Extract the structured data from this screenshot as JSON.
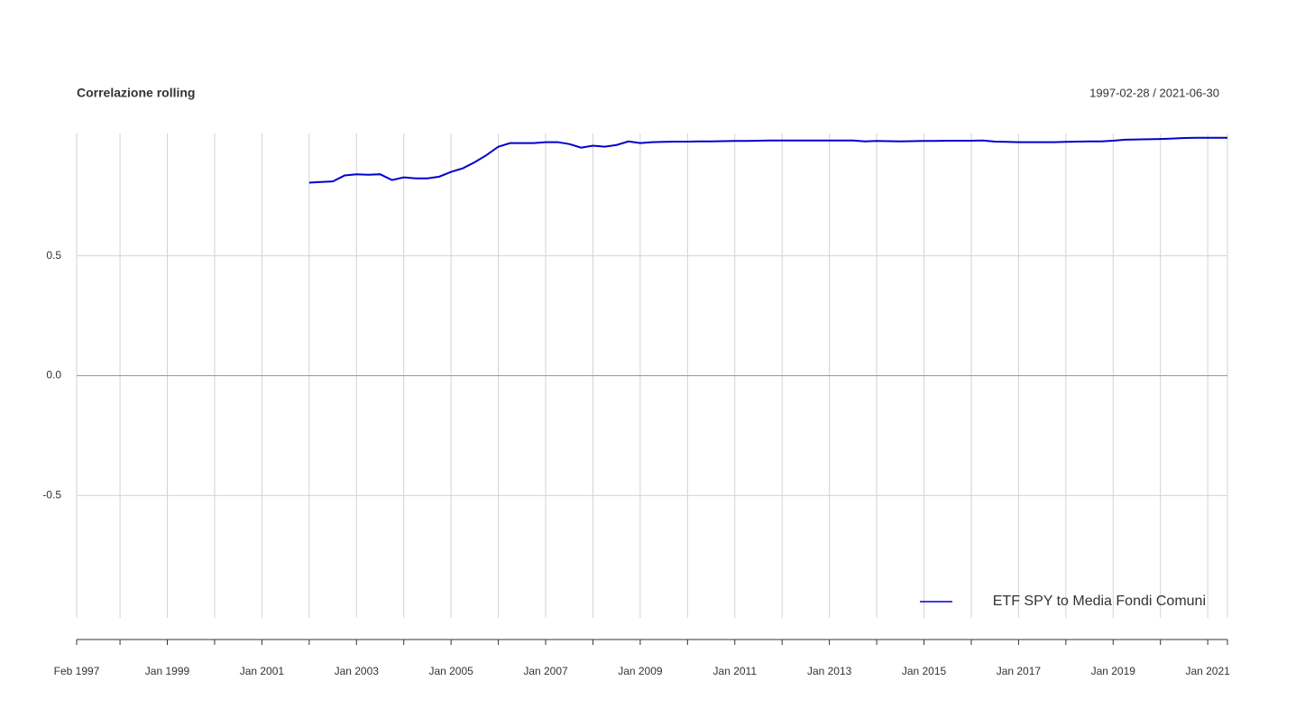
{
  "chart_data": {
    "type": "line",
    "title": "Correlazione rolling",
    "subtitle": "1997-02-28 / 2021-06-30",
    "x": [
      "2002-01",
      "2002-04",
      "2002-07",
      "2002-10",
      "2003-01",
      "2003-04",
      "2003-07",
      "2003-10",
      "2004-01",
      "2004-04",
      "2004-07",
      "2004-10",
      "2005-01",
      "2005-04",
      "2005-07",
      "2005-10",
      "2006-01",
      "2006-04",
      "2006-07",
      "2006-10",
      "2007-01",
      "2007-04",
      "2007-07",
      "2007-10",
      "2008-01",
      "2008-04",
      "2008-07",
      "2008-10",
      "2009-01",
      "2009-04",
      "2009-07",
      "2009-10",
      "2010-01",
      "2010-04",
      "2010-07",
      "2010-10",
      "2011-01",
      "2011-04",
      "2011-07",
      "2011-10",
      "2012-01",
      "2012-04",
      "2012-07",
      "2012-10",
      "2013-01",
      "2013-04",
      "2013-07",
      "2013-10",
      "2014-01",
      "2014-04",
      "2014-07",
      "2014-10",
      "2015-01",
      "2015-04",
      "2015-07",
      "2015-10",
      "2016-01",
      "2016-04",
      "2016-07",
      "2016-10",
      "2017-01",
      "2017-04",
      "2017-07",
      "2017-10",
      "2018-01",
      "2018-04",
      "2018-07",
      "2018-10",
      "2019-01",
      "2019-04",
      "2019-07",
      "2019-10",
      "2020-01",
      "2020-04",
      "2020-07",
      "2020-10",
      "2021-01",
      "2021-04",
      "2021-06"
    ],
    "series": [
      {
        "name": "ETF SPY to Media Fondi Comuni",
        "color": "#0000cd",
        "values": [
          0.805,
          0.808,
          0.81,
          0.835,
          0.84,
          0.838,
          0.84,
          0.816,
          0.827,
          0.823,
          0.823,
          0.83,
          0.85,
          0.865,
          0.89,
          0.92,
          0.955,
          0.97,
          0.97,
          0.97,
          0.974,
          0.974,
          0.966,
          0.951,
          0.959,
          0.955,
          0.962,
          0.977,
          0.97,
          0.974,
          0.975,
          0.976,
          0.976,
          0.977,
          0.977,
          0.978,
          0.979,
          0.979,
          0.98,
          0.981,
          0.981,
          0.981,
          0.981,
          0.981,
          0.981,
          0.981,
          0.981,
          0.977,
          0.979,
          0.978,
          0.977,
          0.978,
          0.979,
          0.979,
          0.98,
          0.98,
          0.98,
          0.981,
          0.976,
          0.975,
          0.974,
          0.974,
          0.974,
          0.974,
          0.975,
          0.976,
          0.977,
          0.977,
          0.98,
          0.984,
          0.985,
          0.986,
          0.987,
          0.989,
          0.991,
          0.992,
          0.992,
          0.992,
          0.992
        ]
      }
    ],
    "xlim": [
      "1997-02",
      "2021-06"
    ],
    "xticks": [
      {
        "value": "1997-02",
        "label": "Feb 1997"
      },
      {
        "value": "1999-01",
        "label": "Jan 1999"
      },
      {
        "value": "2001-01",
        "label": "Jan 2001"
      },
      {
        "value": "2003-01",
        "label": "Jan 2003"
      },
      {
        "value": "2005-01",
        "label": "Jan 2005"
      },
      {
        "value": "2007-01",
        "label": "Jan 2007"
      },
      {
        "value": "2009-01",
        "label": "Jan 2009"
      },
      {
        "value": "2011-01",
        "label": "Jan 2011"
      },
      {
        "value": "2013-01",
        "label": "Jan 2013"
      },
      {
        "value": "2015-01",
        "label": "Jan 2015"
      },
      {
        "value": "2017-01",
        "label": "Jan 2017"
      },
      {
        "value": "2019-01",
        "label": "Jan 2019"
      },
      {
        "value": "2021-01",
        "label": "Jan 2021"
      }
    ],
    "ylim": [
      -1.01,
      1.01
    ],
    "yticks": [
      -0.5,
      {
        "value": 0,
        "label": "0.0"
      },
      0.5
    ],
    "grid": true,
    "legend": "bottomright"
  }
}
